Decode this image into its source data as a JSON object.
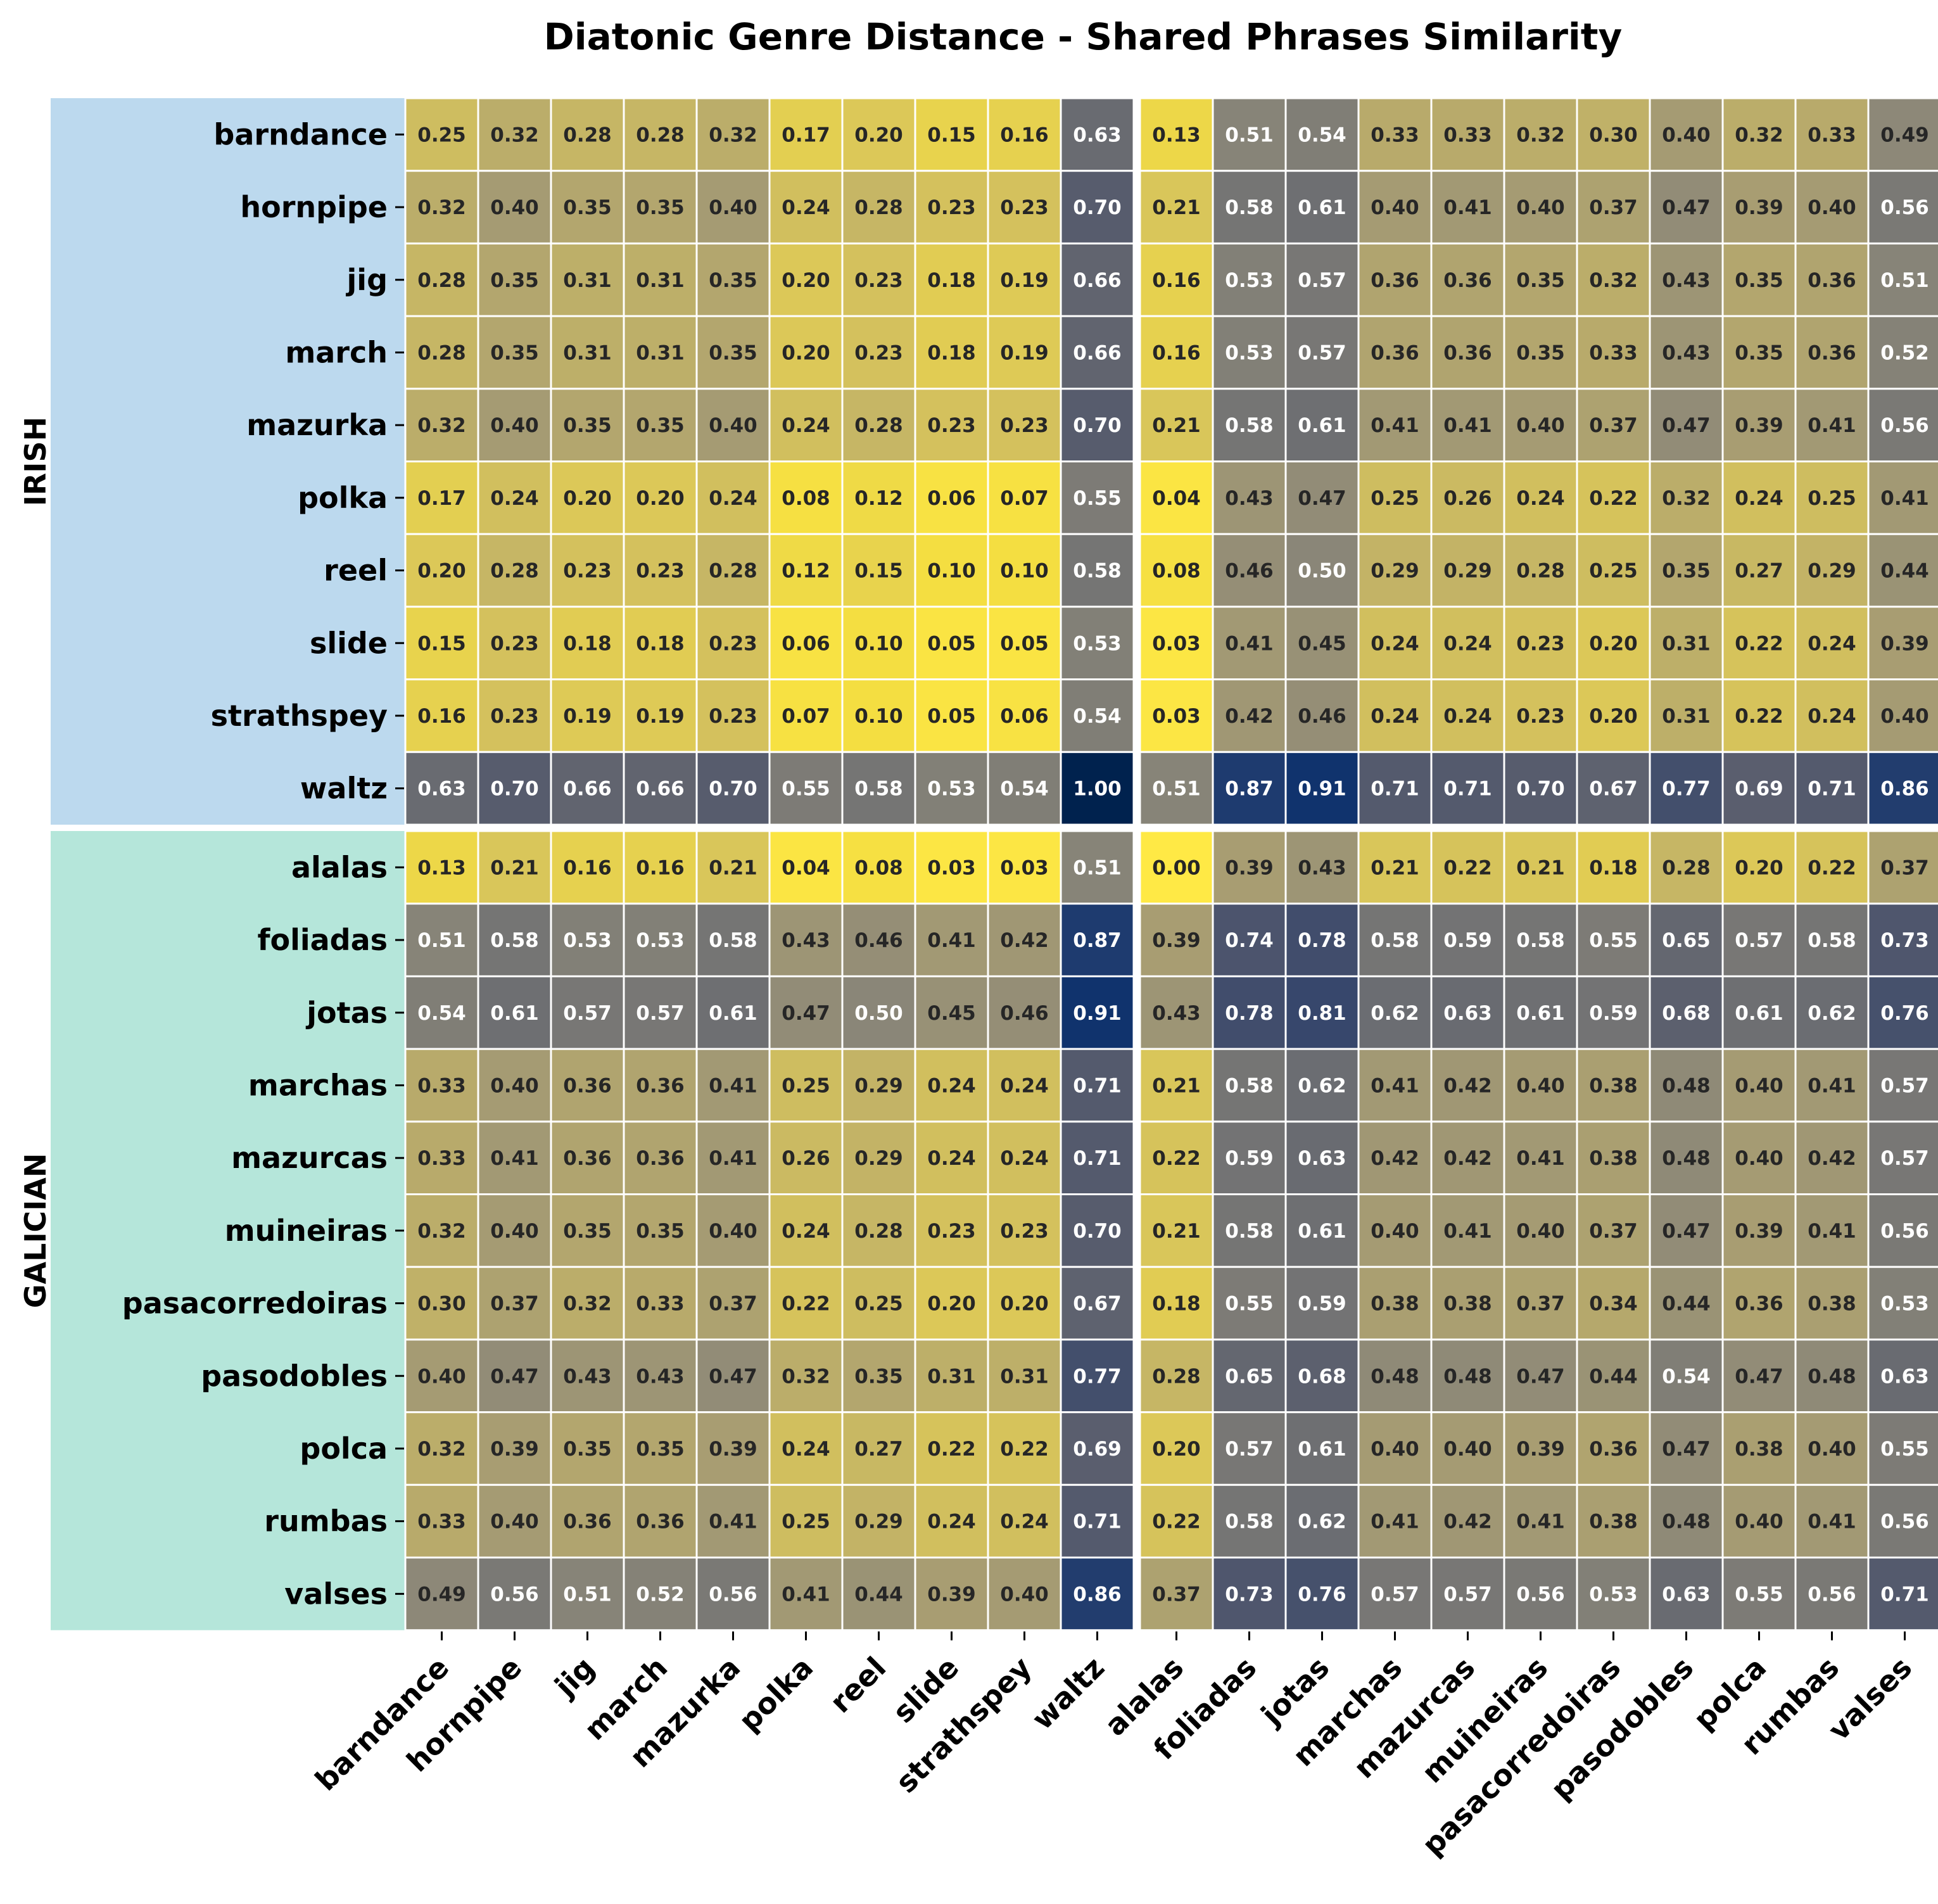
{
  "chart_data": {
    "type": "heatmap",
    "title": "Diatonic Genre Distance - Shared Phrases Similarity",
    "colormap": "cividis_r",
    "value_range": [
      0,
      1
    ],
    "value_format": "2 decimals",
    "x_categories": [
      "barndance",
      "hornpipe",
      "jig",
      "march",
      "mazurka",
      "polka",
      "reel",
      "slide",
      "strathspey",
      "waltz",
      "alalas",
      "foliadas",
      "jotas",
      "marchas",
      "mazurcas",
      "muineiras",
      "pasacorredoiras",
      "pasodobles",
      "polca",
      "rumbas",
      "valses"
    ],
    "y_categories": [
      "barndance",
      "hornpipe",
      "jig",
      "march",
      "mazurka",
      "polka",
      "reel",
      "slide",
      "strathspey",
      "waltz",
      "alalas",
      "foliadas",
      "jotas",
      "marchas",
      "mazurcas",
      "muineiras",
      "pasacorredoiras",
      "pasodobles",
      "polca",
      "rumbas",
      "valses"
    ],
    "groups": [
      {
        "label": "IRISH",
        "start": 0,
        "end": 9,
        "color": "#bcd9ee"
      },
      {
        "label": "GALICIAN",
        "start": 10,
        "end": 20,
        "color": "#b5e6da"
      }
    ],
    "group_separator_after_index": 9,
    "values": [
      [
        0.25,
        0.32,
        0.28,
        0.28,
        0.32,
        0.17,
        0.2,
        0.15,
        0.16,
        0.63,
        0.13,
        0.51,
        0.54,
        0.33,
        0.33,
        0.32,
        0.3,
        0.4,
        0.32,
        0.33,
        0.49
      ],
      [
        0.32,
        0.4,
        0.35,
        0.35,
        0.4,
        0.24,
        0.28,
        0.23,
        0.23,
        0.7,
        0.21,
        0.58,
        0.61,
        0.4,
        0.41,
        0.4,
        0.37,
        0.47,
        0.39,
        0.4,
        0.56
      ],
      [
        0.28,
        0.35,
        0.31,
        0.31,
        0.35,
        0.2,
        0.23,
        0.18,
        0.19,
        0.66,
        0.16,
        0.53,
        0.57,
        0.36,
        0.36,
        0.35,
        0.32,
        0.43,
        0.35,
        0.36,
        0.51
      ],
      [
        0.28,
        0.35,
        0.31,
        0.31,
        0.35,
        0.2,
        0.23,
        0.18,
        0.19,
        0.66,
        0.16,
        0.53,
        0.57,
        0.36,
        0.36,
        0.35,
        0.33,
        0.43,
        0.35,
        0.36,
        0.52
      ],
      [
        0.32,
        0.4,
        0.35,
        0.35,
        0.4,
        0.24,
        0.28,
        0.23,
        0.23,
        0.7,
        0.21,
        0.58,
        0.61,
        0.41,
        0.41,
        0.4,
        0.37,
        0.47,
        0.39,
        0.41,
        0.56
      ],
      [
        0.17,
        0.24,
        0.2,
        0.2,
        0.24,
        0.08,
        0.12,
        0.06,
        0.07,
        0.55,
        0.04,
        0.43,
        0.47,
        0.25,
        0.26,
        0.24,
        0.22,
        0.32,
        0.24,
        0.25,
        0.41
      ],
      [
        0.2,
        0.28,
        0.23,
        0.23,
        0.28,
        0.12,
        0.15,
        0.1,
        0.1,
        0.58,
        0.08,
        0.46,
        0.5,
        0.29,
        0.29,
        0.28,
        0.25,
        0.35,
        0.27,
        0.29,
        0.44
      ],
      [
        0.15,
        0.23,
        0.18,
        0.18,
        0.23,
        0.06,
        0.1,
        0.05,
        0.05,
        0.53,
        0.03,
        0.41,
        0.45,
        0.24,
        0.24,
        0.23,
        0.2,
        0.31,
        0.22,
        0.24,
        0.39
      ],
      [
        0.16,
        0.23,
        0.19,
        0.19,
        0.23,
        0.07,
        0.1,
        0.05,
        0.06,
        0.54,
        0.03,
        0.42,
        0.46,
        0.24,
        0.24,
        0.23,
        0.2,
        0.31,
        0.22,
        0.24,
        0.4
      ],
      [
        0.63,
        0.7,
        0.66,
        0.66,
        0.7,
        0.55,
        0.58,
        0.53,
        0.54,
        1.0,
        0.51,
        0.87,
        0.91,
        0.71,
        0.71,
        0.7,
        0.67,
        0.77,
        0.69,
        0.71,
        0.86
      ],
      [
        0.13,
        0.21,
        0.16,
        0.16,
        0.21,
        0.04,
        0.08,
        0.03,
        0.03,
        0.51,
        0.0,
        0.39,
        0.43,
        0.21,
        0.22,
        0.21,
        0.18,
        0.28,
        0.2,
        0.22,
        0.37
      ],
      [
        0.51,
        0.58,
        0.53,
        0.53,
        0.58,
        0.43,
        0.46,
        0.41,
        0.42,
        0.87,
        0.39,
        0.74,
        0.78,
        0.58,
        0.59,
        0.58,
        0.55,
        0.65,
        0.57,
        0.58,
        0.73
      ],
      [
        0.54,
        0.61,
        0.57,
        0.57,
        0.61,
        0.47,
        0.5,
        0.45,
        0.46,
        0.91,
        0.43,
        0.78,
        0.81,
        0.62,
        0.63,
        0.61,
        0.59,
        0.68,
        0.61,
        0.62,
        0.76
      ],
      [
        0.33,
        0.4,
        0.36,
        0.36,
        0.41,
        0.25,
        0.29,
        0.24,
        0.24,
        0.71,
        0.21,
        0.58,
        0.62,
        0.41,
        0.42,
        0.4,
        0.38,
        0.48,
        0.4,
        0.41,
        0.57
      ],
      [
        0.33,
        0.41,
        0.36,
        0.36,
        0.41,
        0.26,
        0.29,
        0.24,
        0.24,
        0.71,
        0.22,
        0.59,
        0.63,
        0.42,
        0.42,
        0.41,
        0.38,
        0.48,
        0.4,
        0.42,
        0.57
      ],
      [
        0.32,
        0.4,
        0.35,
        0.35,
        0.4,
        0.24,
        0.28,
        0.23,
        0.23,
        0.7,
        0.21,
        0.58,
        0.61,
        0.4,
        0.41,
        0.4,
        0.37,
        0.47,
        0.39,
        0.41,
        0.56
      ],
      [
        0.3,
        0.37,
        0.32,
        0.33,
        0.37,
        0.22,
        0.25,
        0.2,
        0.2,
        0.67,
        0.18,
        0.55,
        0.59,
        0.38,
        0.38,
        0.37,
        0.34,
        0.44,
        0.36,
        0.38,
        0.53
      ],
      [
        0.4,
        0.47,
        0.43,
        0.43,
        0.47,
        0.32,
        0.35,
        0.31,
        0.31,
        0.77,
        0.28,
        0.65,
        0.68,
        0.48,
        0.48,
        0.47,
        0.44,
        0.54,
        0.47,
        0.48,
        0.63
      ],
      [
        0.32,
        0.39,
        0.35,
        0.35,
        0.39,
        0.24,
        0.27,
        0.22,
        0.22,
        0.69,
        0.2,
        0.57,
        0.61,
        0.4,
        0.4,
        0.39,
        0.36,
        0.47,
        0.38,
        0.4,
        0.55
      ],
      [
        0.33,
        0.4,
        0.36,
        0.36,
        0.41,
        0.25,
        0.29,
        0.24,
        0.24,
        0.71,
        0.22,
        0.58,
        0.62,
        0.41,
        0.42,
        0.41,
        0.38,
        0.48,
        0.4,
        0.41,
        0.56
      ],
      [
        0.49,
        0.56,
        0.51,
        0.52,
        0.56,
        0.41,
        0.44,
        0.39,
        0.4,
        0.86,
        0.37,
        0.73,
        0.76,
        0.57,
        0.57,
        0.56,
        0.53,
        0.63,
        0.55,
        0.56,
        0.71
      ]
    ]
  }
}
